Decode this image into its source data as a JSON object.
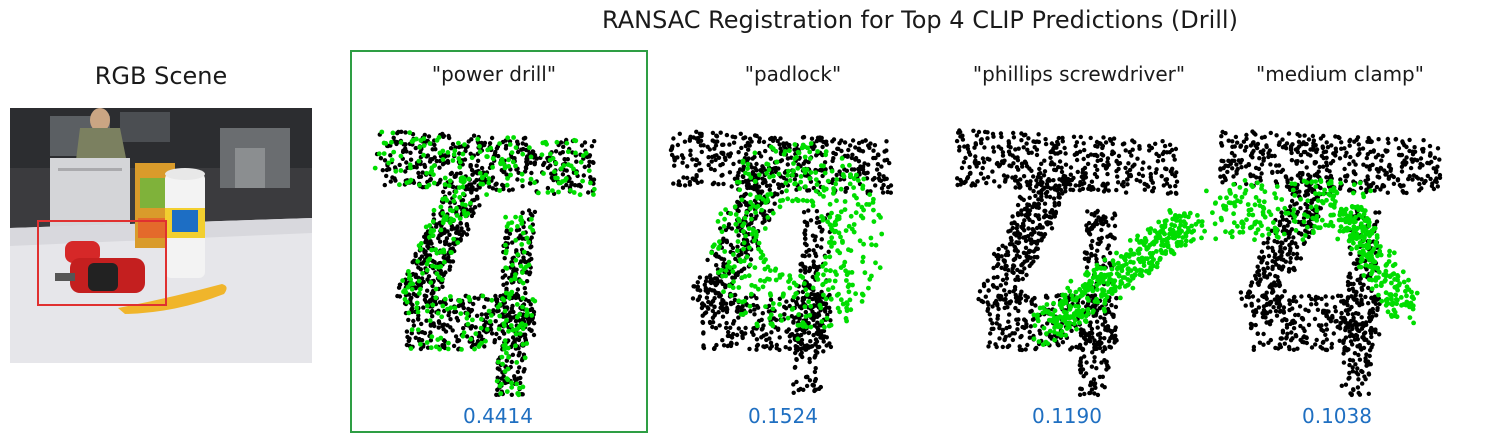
{
  "title": "RANSAC Registration for Top 4 CLIP Predictions (Drill)",
  "scene": {
    "title": "RGB Scene"
  },
  "colors": {
    "score": "#1f6fc1",
    "match": "#00dd00",
    "points": "#000000",
    "highlight": "#2e9e44",
    "roi": "#e03030"
  },
  "predictions": [
    {
      "label": "\"power drill\"",
      "score": "0.4414",
      "selected": true
    },
    {
      "label": "\"padlock\"",
      "score": "0.1524",
      "selected": false
    },
    {
      "label": "\"phillips screwdriver\"",
      "score": "0.1190",
      "selected": false
    },
    {
      "label": "\"medium clamp\"",
      "score": "0.1038",
      "selected": false
    }
  ]
}
